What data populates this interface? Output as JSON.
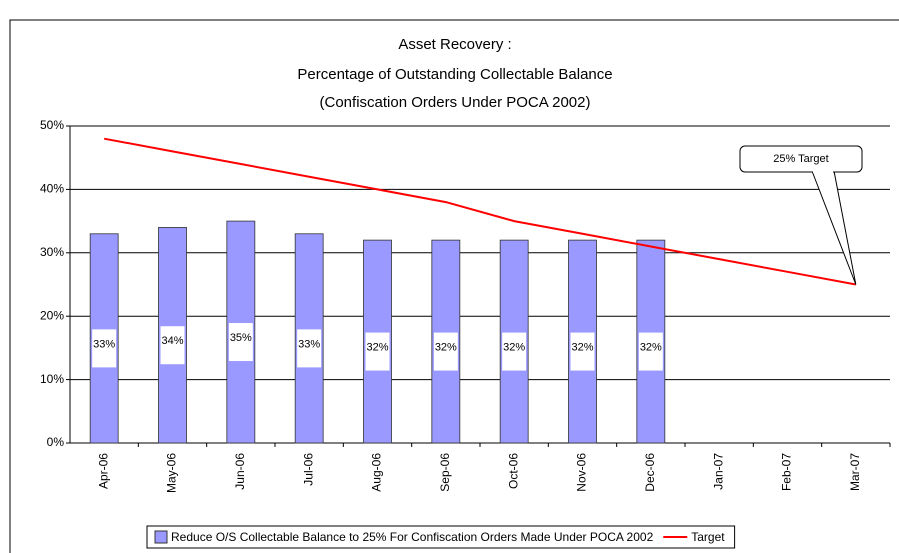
{
  "chart_data": {
    "type": "bar_line",
    "title": [
      "Asset Recovery :",
      "Percentage of Outstanding Collectable Balance",
      "(Confiscation Orders Under POCA 2002)"
    ],
    "categories": [
      "Apr-06",
      "May-06",
      "Jun-06",
      "Jul-06",
      "Aug-06",
      "Sep-06",
      "Oct-06",
      "Nov-06",
      "Dec-06",
      "Jan-07",
      "Feb-07",
      "Mar-07"
    ],
    "series": [
      {
        "name": "Reduce O/S Collectable Balance to 25% For Confiscation Orders Made Under POCA 2002",
        "type": "bar",
        "color": "#9999ff",
        "values": [
          33,
          34,
          35,
          33,
          32,
          32,
          32,
          32,
          32,
          null,
          null,
          null
        ],
        "value_labels": [
          "33%",
          "34%",
          "35%",
          "33%",
          "32%",
          "32%",
          "32%",
          "32%",
          "32%",
          null,
          null,
          null
        ]
      },
      {
        "name": "Target",
        "type": "line",
        "color": "#ff0000",
        "values": [
          48,
          46,
          44,
          42,
          40,
          38,
          35,
          33,
          31,
          29,
          27,
          25
        ]
      }
    ],
    "annotation": "25% Target",
    "ylim": [
      0,
      50
    ],
    "yticks": [
      {
        "value": 0,
        "label": "0%"
      },
      {
        "value": 10,
        "label": "10%"
      },
      {
        "value": 20,
        "label": "20%"
      },
      {
        "value": 30,
        "label": "30%"
      },
      {
        "value": 40,
        "label": "40%"
      },
      {
        "value": 50,
        "label": "50%"
      }
    ],
    "grid": true,
    "legend": "bottom"
  }
}
